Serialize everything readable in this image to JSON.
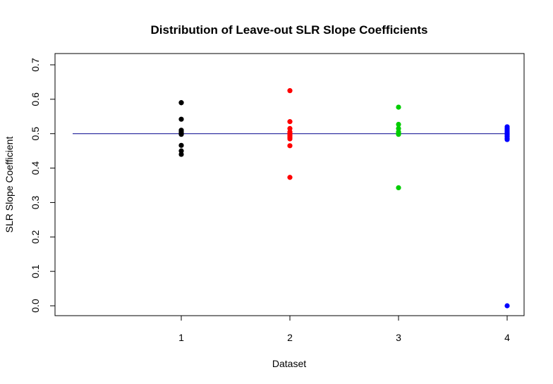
{
  "chart_data": {
    "type": "scatter",
    "title": "Distribution of Leave-out SLR Slope Coefficients",
    "xlabel": "Dataset",
    "ylabel": "SLR Slope Coefficient",
    "xlim": [
      0,
      4
    ],
    "ylim": [
      0,
      0.7
    ],
    "x_ticks": [
      1,
      2,
      3,
      4
    ],
    "y_ticks": [
      0.0,
      0.1,
      0.2,
      0.3,
      0.4,
      0.5,
      0.6,
      0.7
    ],
    "y_tick_labels": [
      "0.0",
      "0.1",
      "0.2",
      "0.3",
      "0.4",
      "0.5",
      "0.6",
      "0.7"
    ],
    "reference_line": {
      "y": 0.5,
      "color": "#00008b"
    },
    "series": [
      {
        "x": 1,
        "color": "#000000",
        "values": [
          0.59,
          0.59,
          0.542,
          0.51,
          0.505,
          0.5,
          0.5,
          0.498,
          0.466,
          0.45,
          0.44
        ]
      },
      {
        "x": 2,
        "color": "#ff0000",
        "values": [
          0.625,
          0.535,
          0.515,
          0.505,
          0.5,
          0.495,
          0.49,
          0.485,
          0.465,
          0.373
        ]
      },
      {
        "x": 3,
        "color": "#00cd00",
        "values": [
          0.577,
          0.527,
          0.515,
          0.505,
          0.5,
          0.5,
          0.498,
          0.343
        ]
      },
      {
        "x": 4,
        "color": "#0000ff",
        "values": [
          0.52,
          0.515,
          0.51,
          0.505,
          0.5,
          0.497,
          0.492,
          0.487,
          0.483,
          0.0
        ]
      }
    ]
  }
}
